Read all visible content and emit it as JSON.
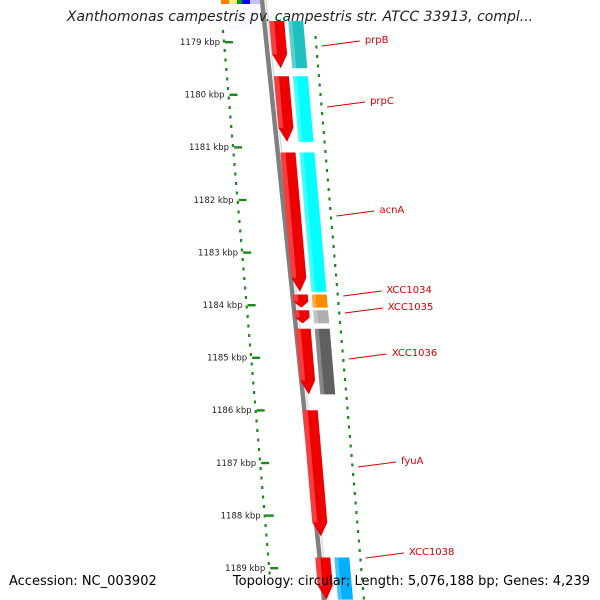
{
  "title": "Xanthomonas campestris pv. campestris str. ATCC 33913, compl...",
  "footer": {
    "accession": "Accession: NC_003902",
    "summary": "Topology: circular; Length: 5,076,188 bp; Genes: 4,239"
  },
  "map": {
    "start_kbp": 1178.5,
    "end_kbp": 1189.5,
    "ticks": [
      {
        "kbp": 1179,
        "label": "1179 kbp"
      },
      {
        "kbp": 1180,
        "label": "1180 kbp"
      },
      {
        "kbp": 1181,
        "label": "1181 kbp"
      },
      {
        "kbp": 1182,
        "label": "1182 kbp"
      },
      {
        "kbp": 1183,
        "label": "1183 kbp"
      },
      {
        "kbp": 1184,
        "label": "1184 kbp"
      },
      {
        "kbp": 1185,
        "label": "1185 kbp"
      },
      {
        "kbp": 1186,
        "label": "1186 kbp"
      },
      {
        "kbp": 1187,
        "label": "1187 kbp"
      },
      {
        "kbp": 1188,
        "label": "1188 kbp"
      },
      {
        "kbp": 1189,
        "label": "1189 kbp"
      }
    ],
    "genes": [
      {
        "name": "prpB",
        "start": 1178.6,
        "end": 1179.5,
        "strand": "+",
        "color": "#20c0c0"
      },
      {
        "name": "prpC",
        "start": 1179.65,
        "end": 1180.9,
        "strand": "+",
        "color": "#00ffff"
      },
      {
        "name": "acnA",
        "start": 1181.1,
        "end": 1183.75,
        "strand": "+",
        "color": "#00ffff"
      },
      {
        "name": "XCC1034",
        "start": 1183.8,
        "end": 1184.05,
        "strand": "+",
        "color": "#ff8c00"
      },
      {
        "name": "XCC1035",
        "start": 1184.1,
        "end": 1184.35,
        "strand": "+",
        "color": "#b0b0b0"
      },
      {
        "name": "XCC1036",
        "start": 1184.45,
        "end": 1185.7,
        "strand": "+",
        "color": "#606060"
      },
      {
        "name": "fyuA",
        "start": 1186.0,
        "end": 1188.4,
        "strand": "+",
        "color": null
      },
      {
        "name": "XCC1038",
        "start": 1188.8,
        "end": 1189.6,
        "strand": "+",
        "color": "#00b0ff"
      }
    ],
    "colors": {
      "cds": "#ee0000",
      "backbone": "#808080",
      "gc_dots": "#1a8a1a",
      "label": "#d40000",
      "top_strip": [
        "#ff7f00",
        "#f0e68c",
        "#00a000",
        "#0000ff",
        "#c0c0ff"
      ]
    }
  }
}
